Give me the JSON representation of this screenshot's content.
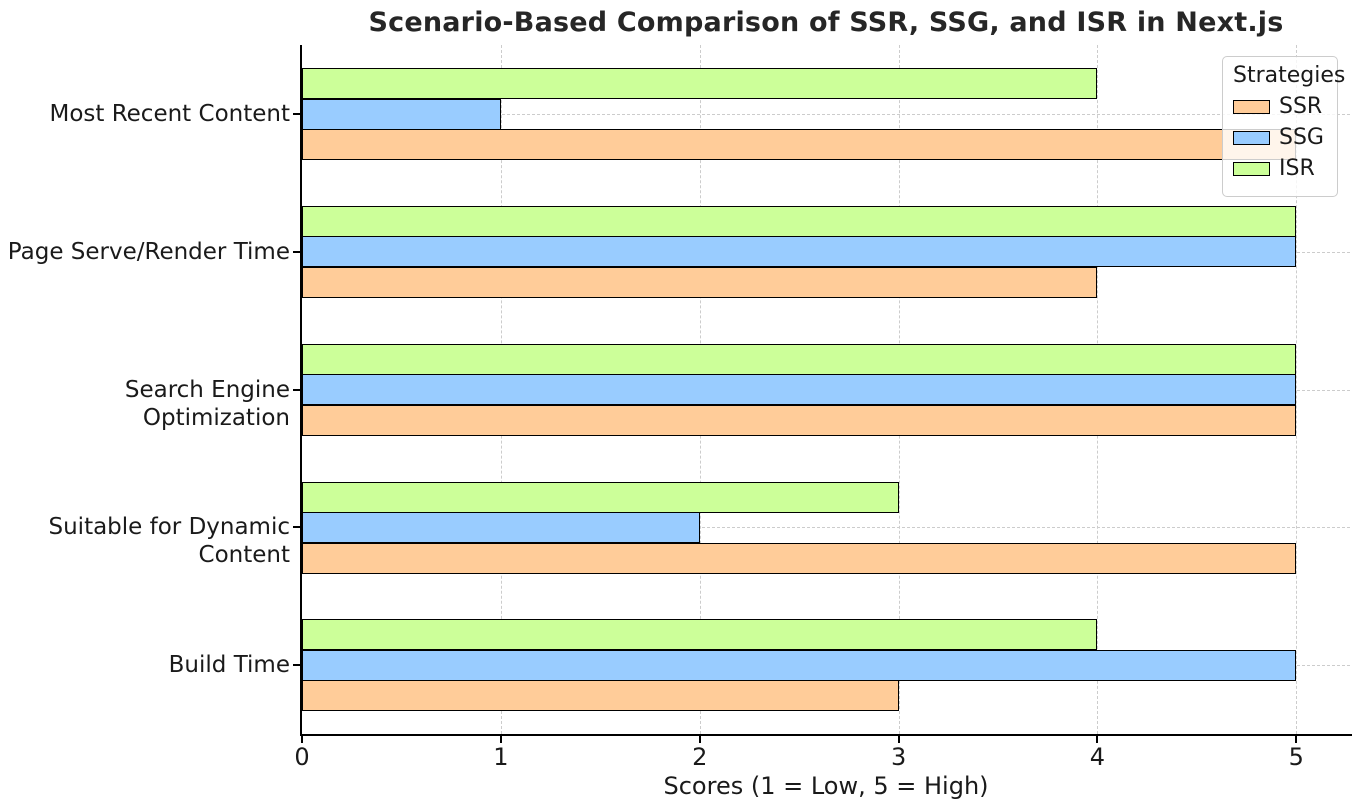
{
  "chart_data": {
    "type": "bar",
    "orientation": "horizontal",
    "title": "Scenario-Based Comparison of SSR, SSG, and ISR in Next.js",
    "xlabel": "Scores (1 = Low, 5 = High)",
    "ylabel": "",
    "categories": [
      "Most Recent Content",
      "Page Serve/Render Time",
      "Search Engine Optimization",
      "Suitable for Dynamic Content",
      "Build Time"
    ],
    "series": [
      {
        "name": "SSR",
        "color": "#FFCC99",
        "values": [
          5,
          4,
          5,
          5,
          3
        ]
      },
      {
        "name": "SSG",
        "color": "#99CCFF",
        "values": [
          1,
          5,
          5,
          2,
          5
        ]
      },
      {
        "name": "ISR",
        "color": "#CCFF99",
        "values": [
          4,
          5,
          5,
          3,
          4
        ]
      }
    ],
    "group_draw_order_top_to_bottom": [
      "ISR",
      "SSG",
      "SSR"
    ],
    "x_ticks": [
      0,
      1,
      2,
      3,
      4,
      5
    ],
    "xlim": [
      0,
      5.27
    ],
    "bar_edge_color": "#000000",
    "grid": {
      "on": true,
      "style": "dashed",
      "color": "#cccccc"
    },
    "legend": {
      "title": "Strategies",
      "position": "upper-right",
      "entries": [
        "SSR",
        "SSG",
        "ISR"
      ]
    },
    "background": "#ffffff"
  }
}
